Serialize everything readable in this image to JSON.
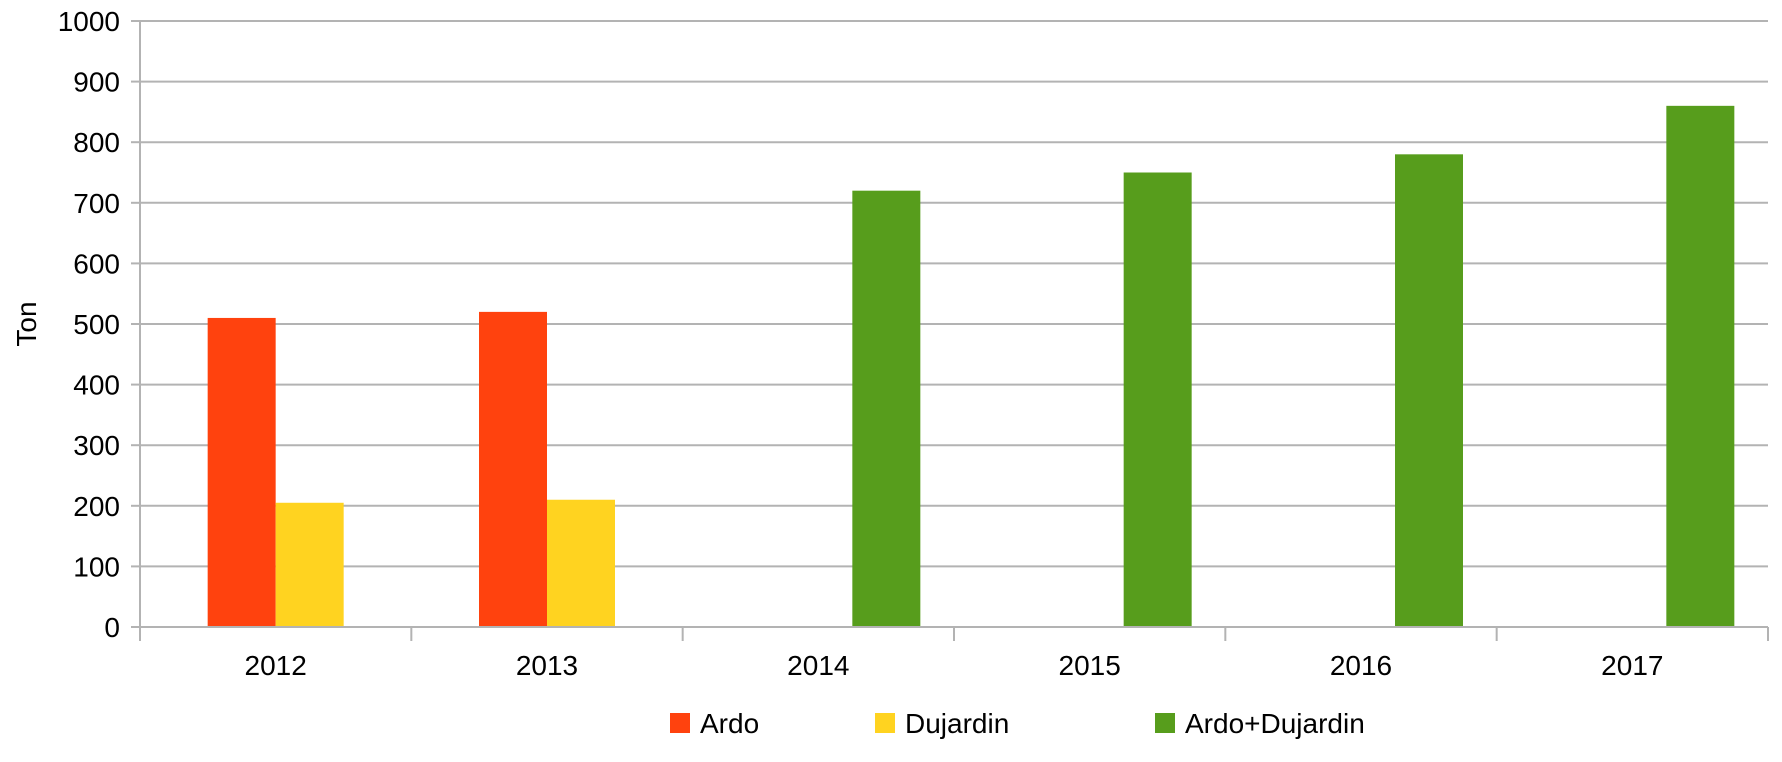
{
  "chart_data": {
    "type": "bar",
    "title": "",
    "xlabel": "",
    "ylabel": "Ton",
    "ylim": [
      0,
      1000
    ],
    "yticks": [
      "0",
      "100",
      "200",
      "300",
      "400",
      "500",
      "600",
      "700",
      "800",
      "900",
      "1000"
    ],
    "categories": [
      "2012",
      "2013",
      "2014",
      "2015",
      "2016",
      "2017"
    ],
    "grid": true,
    "legend_position": "bottom",
    "series": [
      {
        "name": "Ardo",
        "color": "#ff420e",
        "values": [
          510,
          520,
          null,
          null,
          null,
          null
        ]
      },
      {
        "name": "Dujardin",
        "color": "#ffd320",
        "values": [
          205,
          210,
          null,
          null,
          null,
          null
        ]
      },
      {
        "name": "Ardo+Dujardin",
        "color": "#579d1c",
        "values": [
          null,
          null,
          720,
          750,
          780,
          860
        ]
      }
    ]
  }
}
